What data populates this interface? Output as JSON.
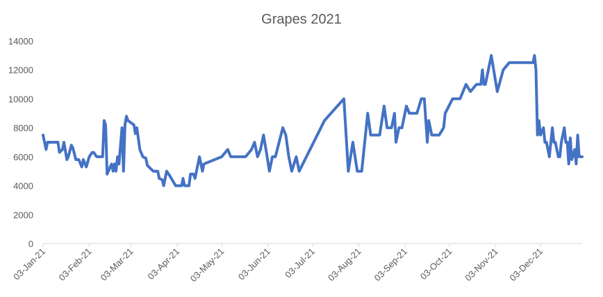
{
  "chart_data": {
    "type": "line",
    "title": "Grapes 2021",
    "xlabel": "",
    "ylabel": "",
    "ylim": [
      0,
      14000
    ],
    "yticks": [
      "0",
      "2000",
      "4000",
      "6000",
      "8000",
      "10000",
      "12000",
      "14000"
    ],
    "xlim": [
      "2021-01-03",
      "2021-12-31"
    ],
    "xticks": [
      {
        "date": "2021-01-03",
        "label": "03-Jan-21"
      },
      {
        "date": "2021-02-03",
        "label": "03-Feb-21"
      },
      {
        "date": "2021-03-03",
        "label": "03-Mar-21"
      },
      {
        "date": "2021-04-03",
        "label": "03-Apr-21"
      },
      {
        "date": "2021-05-03",
        "label": "03-May-21"
      },
      {
        "date": "2021-06-03",
        "label": "03-Jun-21"
      },
      {
        "date": "2021-07-03",
        "label": "03-Jul-21"
      },
      {
        "date": "2021-08-03",
        "label": "03-Aug-21"
      },
      {
        "date": "2021-09-03",
        "label": "03-Sep-21"
      },
      {
        "date": "2021-10-03",
        "label": "03-Oct-21"
      },
      {
        "date": "2021-11-03",
        "label": "03-Nov-21"
      },
      {
        "date": "2021-12-03",
        "label": "03-Dec-21"
      }
    ],
    "grid": false,
    "legend": "none",
    "series": [
      {
        "color": "#4472c4",
        "points": [
          [
            "2021-01-03",
            7500
          ],
          [
            "2021-01-05",
            6500
          ],
          [
            "2021-01-06",
            7000
          ],
          [
            "2021-01-09",
            7000
          ],
          [
            "2021-01-13",
            7000
          ],
          [
            "2021-01-14",
            6300
          ],
          [
            "2021-01-16",
            6500
          ],
          [
            "2021-01-17",
            7000
          ],
          [
            "2021-01-19",
            5800
          ],
          [
            "2021-01-20",
            6000
          ],
          [
            "2021-01-22",
            6800
          ],
          [
            "2021-01-23",
            6600
          ],
          [
            "2021-01-25",
            5800
          ],
          [
            "2021-01-27",
            5800
          ],
          [
            "2021-01-29",
            5300
          ],
          [
            "2021-01-30",
            5800
          ],
          [
            "2021-02-01",
            5300
          ],
          [
            "2021-02-03",
            6000
          ],
          [
            "2021-02-05",
            6300
          ],
          [
            "2021-02-06",
            6300
          ],
          [
            "2021-02-08",
            6000
          ],
          [
            "2021-02-12",
            6000
          ],
          [
            "2021-02-13",
            8500
          ],
          [
            "2021-02-14",
            8200
          ],
          [
            "2021-02-15",
            4800
          ],
          [
            "2021-02-18",
            5500
          ],
          [
            "2021-02-19",
            5000
          ],
          [
            "2021-02-20",
            5500
          ],
          [
            "2021-02-21",
            5000
          ],
          [
            "2021-02-22",
            6000
          ],
          [
            "2021-02-23",
            5500
          ],
          [
            "2021-02-25",
            8000
          ],
          [
            "2021-02-26",
            5000
          ],
          [
            "2021-02-27",
            8200
          ],
          [
            "2021-02-28",
            8800
          ],
          [
            "2021-03-01",
            8500
          ],
          [
            "2021-03-05",
            8200
          ],
          [
            "2021-03-06",
            7600
          ],
          [
            "2021-03-07",
            8000
          ],
          [
            "2021-03-09",
            6500
          ],
          [
            "2021-03-11",
            6000
          ],
          [
            "2021-03-13",
            5900
          ],
          [
            "2021-03-14",
            5400
          ],
          [
            "2021-03-18",
            5000
          ],
          [
            "2021-03-21",
            5000
          ],
          [
            "2021-03-22",
            4500
          ],
          [
            "2021-03-24",
            4400
          ],
          [
            "2021-03-25",
            4000
          ],
          [
            "2021-03-27",
            5000
          ],
          [
            "2021-03-29",
            4700
          ],
          [
            "2021-04-02",
            4000
          ],
          [
            "2021-04-06",
            4000
          ],
          [
            "2021-04-07",
            4500
          ],
          [
            "2021-04-08",
            4000
          ],
          [
            "2021-04-11",
            4000
          ],
          [
            "2021-04-12",
            4800
          ],
          [
            "2021-04-14",
            4800
          ],
          [
            "2021-04-15",
            4500
          ],
          [
            "2021-04-18",
            6000
          ],
          [
            "2021-04-20",
            5000
          ],
          [
            "2021-04-21",
            5500
          ],
          [
            "2021-05-03",
            6000
          ],
          [
            "2021-05-07",
            6500
          ],
          [
            "2021-05-09",
            6000
          ],
          [
            "2021-05-19",
            6000
          ],
          [
            "2021-05-23",
            6500
          ],
          [
            "2021-05-25",
            7000
          ],
          [
            "2021-05-27",
            6000
          ],
          [
            "2021-05-29",
            6500
          ],
          [
            "2021-05-31",
            7500
          ],
          [
            "2021-06-02",
            6300
          ],
          [
            "2021-06-04",
            5000
          ],
          [
            "2021-06-06",
            6000
          ],
          [
            "2021-06-08",
            6000
          ],
          [
            "2021-06-13",
            8000
          ],
          [
            "2021-06-15",
            7500
          ],
          [
            "2021-06-17",
            6000
          ],
          [
            "2021-06-19",
            5000
          ],
          [
            "2021-06-22",
            6000
          ],
          [
            "2021-06-24",
            5000
          ],
          [
            "2021-07-11",
            8500
          ],
          [
            "2021-07-24",
            10000
          ],
          [
            "2021-07-27",
            5000
          ],
          [
            "2021-07-30",
            7000
          ],
          [
            "2021-08-02",
            5000
          ],
          [
            "2021-08-05",
            5000
          ],
          [
            "2021-08-09",
            9000
          ],
          [
            "2021-08-11",
            7500
          ],
          [
            "2021-08-17",
            7500
          ],
          [
            "2021-08-20",
            9500
          ],
          [
            "2021-08-22",
            8000
          ],
          [
            "2021-08-25",
            8000
          ],
          [
            "2021-08-27",
            9000
          ],
          [
            "2021-08-28",
            7000
          ],
          [
            "2021-08-30",
            8000
          ],
          [
            "2021-09-01",
            8000
          ],
          [
            "2021-09-04",
            9500
          ],
          [
            "2021-09-06",
            9000
          ],
          [
            "2021-09-11",
            9000
          ],
          [
            "2021-09-14",
            10000
          ],
          [
            "2021-09-16",
            10000
          ],
          [
            "2021-09-18",
            7000
          ],
          [
            "2021-09-19",
            8500
          ],
          [
            "2021-09-21",
            7500
          ],
          [
            "2021-09-26",
            7500
          ],
          [
            "2021-09-29",
            8000
          ],
          [
            "2021-09-30",
            9000
          ],
          [
            "2021-10-05",
            10000
          ],
          [
            "2021-10-10",
            10000
          ],
          [
            "2021-10-14",
            11000
          ],
          [
            "2021-10-17",
            10500
          ],
          [
            "2021-10-21",
            11000
          ],
          [
            "2021-10-24",
            11000
          ],
          [
            "2021-10-25",
            12000
          ],
          [
            "2021-10-26",
            11000
          ],
          [
            "2021-10-27",
            11000
          ],
          [
            "2021-10-29",
            12000
          ],
          [
            "2021-10-31",
            13000
          ],
          [
            "2021-11-04",
            10500
          ],
          [
            "2021-11-08",
            12000
          ],
          [
            "2021-11-12",
            12500
          ],
          [
            "2021-11-26",
            12500
          ],
          [
            "2021-11-28",
            12500
          ],
          [
            "2021-11-29",
            13000
          ],
          [
            "2021-11-30",
            12000
          ],
          [
            "2021-12-01",
            7500
          ],
          [
            "2021-12-02",
            8500
          ],
          [
            "2021-12-03",
            7500
          ],
          [
            "2021-12-05",
            8000
          ],
          [
            "2021-12-06",
            7000
          ],
          [
            "2021-12-07",
            7000
          ],
          [
            "2021-12-09",
            6000
          ],
          [
            "2021-12-11",
            8000
          ],
          [
            "2021-12-12",
            7000
          ],
          [
            "2021-12-13",
            7000
          ],
          [
            "2021-12-15",
            6000
          ],
          [
            "2021-12-16",
            6000
          ],
          [
            "2021-12-17",
            7000
          ],
          [
            "2021-12-19",
            8000
          ],
          [
            "2021-12-20",
            7000
          ],
          [
            "2021-12-21",
            7000
          ],
          [
            "2021-12-22",
            5500
          ],
          [
            "2021-12-23",
            7300
          ],
          [
            "2021-12-24",
            5800
          ],
          [
            "2021-12-26",
            6500
          ],
          [
            "2021-12-27",
            5500
          ],
          [
            "2021-12-28",
            7500
          ],
          [
            "2021-12-29",
            6000
          ],
          [
            "2021-12-30",
            6000
          ],
          [
            "2021-12-31",
            6000
          ]
        ]
      }
    ]
  }
}
